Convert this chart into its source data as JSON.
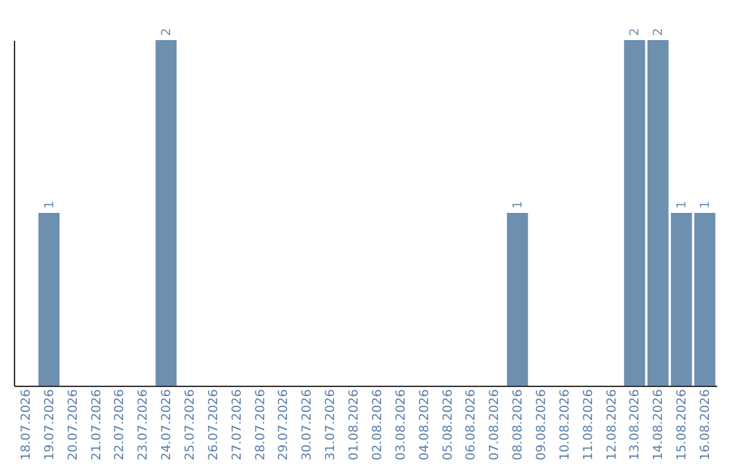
{
  "chart_data": {
    "type": "bar",
    "categories": [
      "18.07.2026",
      "19.07.2026",
      "20.07.2026",
      "21.07.2026",
      "22.07.2026",
      "23.07.2026",
      "24.07.2026",
      "25.07.2026",
      "26.07.2026",
      "27.07.2026",
      "28.07.2026",
      "29.07.2026",
      "30.07.2026",
      "31.07.2026",
      "01.08.2026",
      "02.08.2026",
      "03.08.2026",
      "04.08.2026",
      "05.08.2026",
      "06.08.2026",
      "07.08.2026",
      "08.08.2026",
      "09.08.2026",
      "10.08.2026",
      "11.08.2026",
      "12.08.2026",
      "13.08.2026",
      "14.08.2026",
      "15.08.2026",
      "16.08.2026"
    ],
    "values": [
      0,
      1,
      0,
      0,
      0,
      0,
      2,
      0,
      0,
      0,
      0,
      0,
      0,
      0,
      0,
      0,
      0,
      0,
      0,
      0,
      0,
      1,
      0,
      0,
      0,
      0,
      2,
      2,
      1,
      1
    ],
    "color": "#6d8fb0",
    "value_labels": [
      null,
      "1",
      null,
      null,
      null,
      null,
      "2",
      null,
      null,
      null,
      null,
      null,
      null,
      null,
      null,
      null,
      null,
      null,
      null,
      null,
      null,
      "1",
      null,
      null,
      null,
      null,
      "2",
      "2",
      "1",
      "1"
    ],
    "tick_labels": "x"
  }
}
